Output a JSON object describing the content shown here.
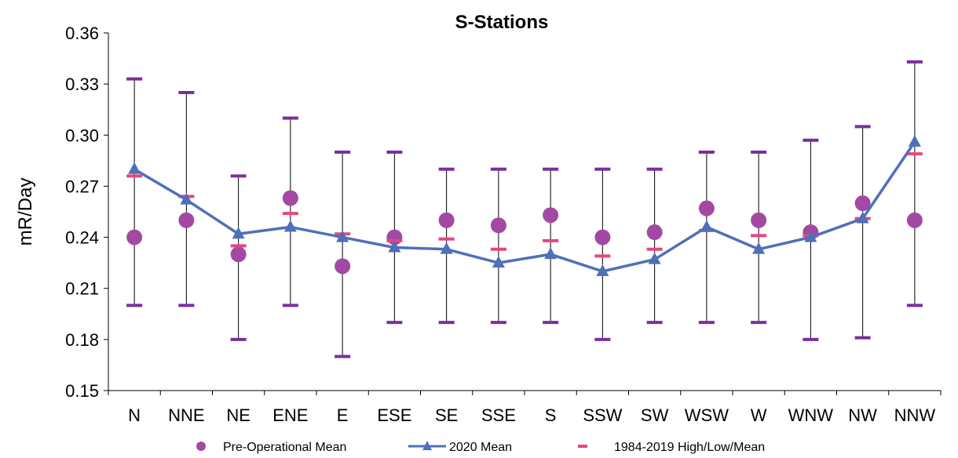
{
  "chart_data": {
    "type": "line",
    "title": "S-Stations",
    "xlabel": "",
    "ylabel": "mR/Day",
    "ylim": [
      0.15,
      0.36
    ],
    "yticks": [
      "0.15",
      "0.18",
      "0.21",
      "0.24",
      "0.27",
      "0.30",
      "0.33",
      "0.36"
    ],
    "categories": [
      "N",
      "NNE",
      "NE",
      "ENE",
      "E",
      "ESE",
      "SE",
      "SSE",
      "S",
      "SSW",
      "SW",
      "WSW",
      "W",
      "WNW",
      "NW",
      "NNW"
    ],
    "series": [
      {
        "name": "Pre-Operational Mean",
        "marker": "circle",
        "color": "#A349A4",
        "values": [
          0.24,
          0.25,
          0.23,
          0.263,
          0.223,
          0.24,
          0.25,
          0.247,
          0.253,
          0.24,
          0.243,
          0.257,
          0.25,
          0.243,
          0.26,
          0.25
        ]
      },
      {
        "name": "2020 Mean",
        "marker": "triangle",
        "color": "#4F70B8",
        "values": [
          0.28,
          0.262,
          0.242,
          0.246,
          0.24,
          0.234,
          0.233,
          0.225,
          0.23,
          0.22,
          0.227,
          0.246,
          0.233,
          0.24,
          0.251,
          0.296
        ]
      },
      {
        "name": "1984-2019 High/Low/Mean",
        "marker": "dash",
        "color": "#E8467C",
        "high_color": "#7A2E9E",
        "high": [
          0.333,
          0.325,
          0.276,
          0.31,
          0.29,
          0.29,
          0.28,
          0.28,
          0.28,
          0.28,
          0.28,
          0.29,
          0.29,
          0.297,
          0.305,
          0.343
        ],
        "low": [
          0.2,
          0.2,
          0.18,
          0.2,
          0.17,
          0.19,
          0.19,
          0.19,
          0.19,
          0.18,
          0.19,
          0.19,
          0.19,
          0.18,
          0.181,
          0.2
        ],
        "mean": [
          0.276,
          0.264,
          0.235,
          0.254,
          0.242,
          0.238,
          0.239,
          0.233,
          0.238,
          0.229,
          0.233,
          0.244,
          0.241,
          0.241,
          0.251,
          0.289
        ]
      }
    ],
    "grid": false,
    "legend_position": "bottom"
  }
}
